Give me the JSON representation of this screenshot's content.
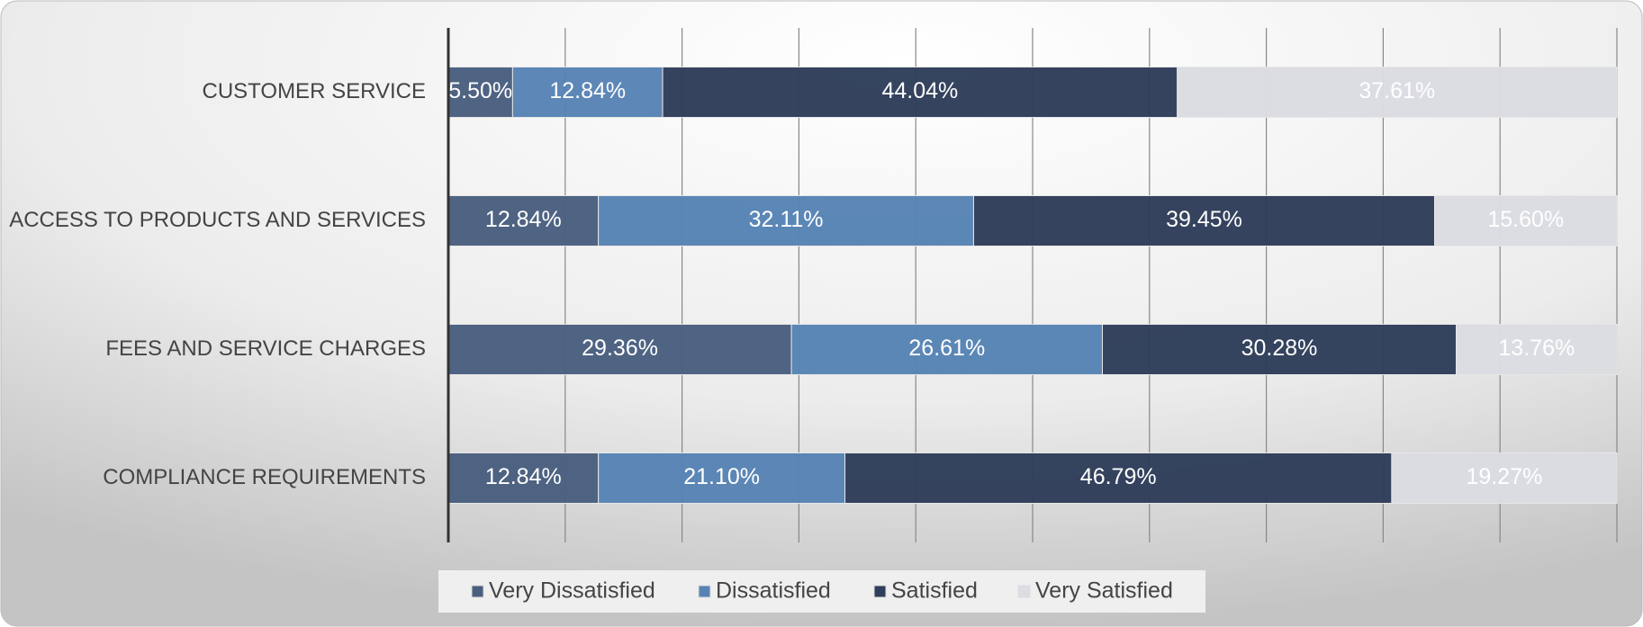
{
  "chart_data": {
    "type": "stacked_bar_horizontal",
    "categories": [
      "CUSTOMER SERVICE",
      "ACCESS TO PRODUCTS AND SERVICES",
      "FEES AND SERVICE CHARGES",
      "COMPLIANCE REQUIREMENTS"
    ],
    "series": [
      {
        "name": "Very Dissatisfied",
        "color": "#4a5f80",
        "values": [
          5.5,
          12.84,
          29.36,
          12.84
        ],
        "value_labels": [
          "5.50%",
          "12.84%",
          "29.36%",
          "12.84%"
        ]
      },
      {
        "name": "Dissatisfied",
        "color": "#5784b5",
        "values": [
          12.84,
          32.11,
          26.61,
          21.1
        ],
        "value_labels": [
          "12.84%",
          "32.11%",
          "26.61%",
          "21.10%"
        ]
      },
      {
        "name": "Satisfied",
        "color": "#2f3e5a",
        "values": [
          44.04,
          39.45,
          30.28,
          46.79
        ],
        "value_labels": [
          "44.04%",
          "39.45%",
          "30.28%",
          "46.79%"
        ]
      },
      {
        "name": "Very Satisfied",
        "color": "#dcdde2",
        "values": [
          37.61,
          15.6,
          13.76,
          19.27
        ],
        "value_labels": [
          "37.61%",
          "15.60%",
          "13.76%",
          "19.27%"
        ]
      }
    ],
    "xlim": [
      0,
      100
    ],
    "xticks": [
      0,
      10,
      20,
      30,
      40,
      50,
      60,
      70,
      80,
      90,
      100
    ],
    "grid": true,
    "legend": "bottom"
  }
}
